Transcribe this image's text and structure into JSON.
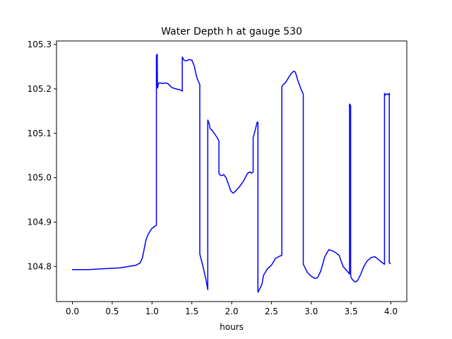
{
  "chart_data": {
    "type": "line",
    "title": "Water Depth h at gauge 530",
    "xlabel": "hours",
    "ylabel": "",
    "xlim": [
      -0.2,
      4.2
    ],
    "ylim": [
      104.721,
      105.308
    ],
    "xticks": [
      0.0,
      0.5,
      1.0,
      1.5,
      2.0,
      2.5,
      3.0,
      3.5,
      4.0
    ],
    "xtick_labels": [
      "0.0",
      "0.5",
      "1.0",
      "1.5",
      "2.0",
      "2.5",
      "3.0",
      "3.5",
      "4.0"
    ],
    "yticks": [
      104.8,
      104.9,
      105.0,
      105.1,
      105.2,
      105.3
    ],
    "ytick_labels": [
      "104.8",
      "104.9",
      "105.0",
      "105.1",
      "105.2",
      "105.3"
    ],
    "grid": false,
    "series": [
      {
        "color": "#0000ff",
        "x": [
          0.0,
          0.2,
          0.4,
          0.6,
          0.7,
          0.8,
          0.85,
          0.88,
          0.9,
          0.92,
          0.94,
          0.96,
          0.98,
          1.0,
          1.03,
          1.055,
          1.055,
          1.065,
          1.068,
          1.07,
          1.07,
          1.08,
          1.1,
          1.13,
          1.15,
          1.18,
          1.2,
          1.22,
          1.25,
          1.3,
          1.35,
          1.38,
          1.38,
          1.4,
          1.43,
          1.46,
          1.5,
          1.53,
          1.55,
          1.57,
          1.6,
          1.6,
          1.64,
          1.68,
          1.7,
          1.7,
          1.72,
          1.73,
          1.75,
          1.78,
          1.82,
          1.84,
          1.84,
          1.86,
          1.88,
          1.9,
          1.93,
          1.96,
          1.99,
          2.02,
          2.05,
          2.1,
          2.15,
          2.2,
          2.23,
          2.25,
          2.27,
          2.27,
          2.3,
          2.32,
          2.33,
          2.33,
          2.36,
          2.38,
          2.4,
          2.45,
          2.5,
          2.55,
          2.6,
          2.63,
          2.63,
          2.65,
          2.68,
          2.72,
          2.75,
          2.78,
          2.8,
          2.83,
          2.87,
          2.9,
          2.9,
          2.95,
          3.0,
          3.05,
          3.08,
          3.12,
          3.17,
          3.22,
          3.27,
          3.3,
          3.35,
          3.4,
          3.45,
          3.48,
          3.48,
          3.485,
          3.49,
          3.495,
          3.495,
          3.5,
          3.52,
          3.55,
          3.58,
          3.62,
          3.66,
          3.7,
          3.75,
          3.8,
          3.85,
          3.88,
          3.92,
          3.92,
          3.93,
          3.95,
          3.97,
          3.98,
          3.98,
          3.99,
          3.995
        ],
        "y": [
          104.793,
          104.793,
          104.795,
          104.797,
          104.8,
          104.803,
          104.808,
          104.82,
          104.838,
          104.857,
          104.868,
          104.875,
          104.881,
          104.886,
          104.89,
          104.893,
          105.276,
          105.278,
          105.205,
          105.202,
          105.202,
          105.212,
          105.214,
          105.212,
          105.213,
          105.213,
          105.212,
          105.208,
          105.203,
          105.2,
          105.198,
          105.195,
          105.272,
          105.265,
          105.263,
          105.266,
          105.265,
          105.252,
          105.235,
          105.222,
          105.21,
          104.828,
          104.8,
          104.768,
          104.748,
          105.13,
          105.12,
          105.11,
          105.108,
          105.1,
          105.09,
          105.083,
          105.01,
          105.005,
          105.005,
          105.007,
          105.0,
          104.985,
          104.97,
          104.965,
          104.97,
          104.98,
          104.993,
          105.01,
          105.013,
          105.01,
          105.013,
          105.09,
          105.11,
          105.125,
          105.125,
          104.742,
          104.752,
          104.76,
          104.78,
          104.795,
          104.803,
          104.818,
          104.823,
          104.825,
          105.205,
          105.21,
          105.215,
          105.227,
          105.235,
          105.24,
          105.238,
          105.22,
          105.2,
          105.188,
          104.805,
          104.787,
          104.778,
          104.773,
          104.775,
          104.79,
          104.822,
          104.838,
          104.835,
          104.832,
          104.825,
          104.8,
          104.79,
          104.783,
          105.166,
          105.165,
          105.163,
          105.162,
          104.782,
          104.775,
          104.77,
          104.765,
          104.768,
          104.782,
          104.8,
          104.812,
          104.82,
          104.822,
          104.815,
          104.81,
          104.805,
          105.19,
          105.186,
          105.189,
          105.187,
          105.19,
          104.808,
          104.807,
          104.807
        ]
      }
    ]
  }
}
